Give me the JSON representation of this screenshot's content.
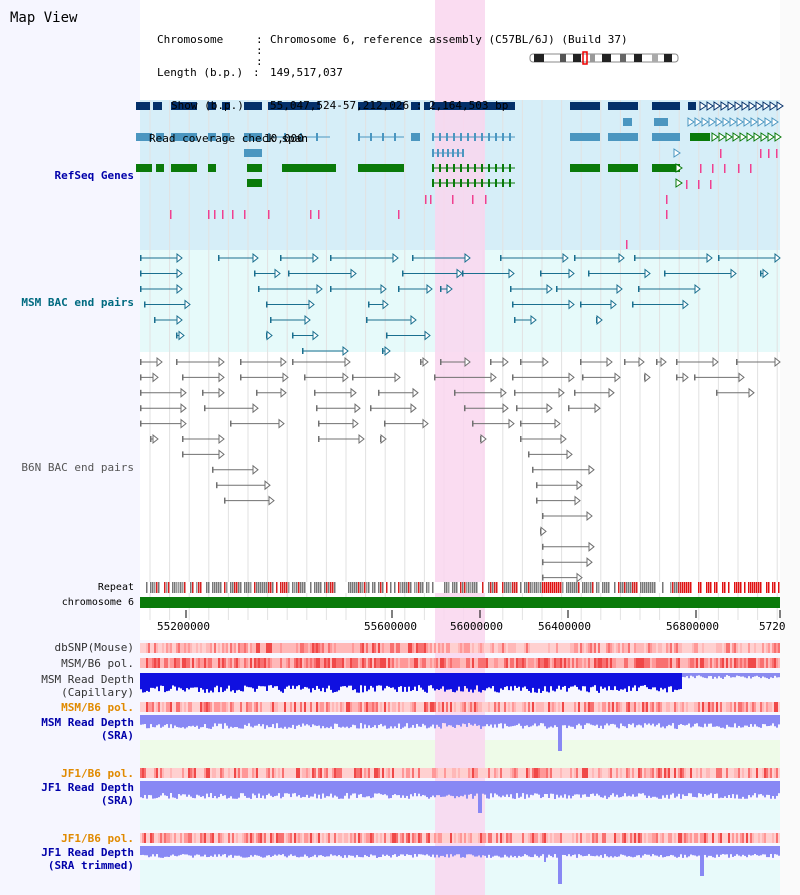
{
  "header": {
    "title": "Map View",
    "info_keys": [
      "Chromosome",
      "Length (b.p.)",
      "Show (b.p.)",
      "Read coverage check span"
    ],
    "info_values": [
      "Chromosome 6, reference assembly (C57BL/6J) (Build 37)",
      "149,517,037",
      "55,047,524-57,212,026 : 2,164,503 bp",
      "10,000"
    ]
  },
  "tracks": {
    "refseq": "RefSeq Genes",
    "msm_bac": "MSM BAC end pairs",
    "b6n_bac": "B6N BAC end pairs",
    "repeat": "Repeat",
    "chromosome": "chromosome 6",
    "dbsnp": "dbSNP(Mouse)",
    "msm_b6_pol_1": "MSM/B6 pol.",
    "msm_depth_cap": [
      "MSM Read Depth",
      "(Capillary)"
    ],
    "msm_b6_pol_2": "MSM/B6 pol.",
    "msm_depth_sra": [
      "MSM Read Depth",
      "(SRA)"
    ],
    "jf1_b6_pol_1": "JF1/B6 pol.",
    "jf1_depth_sra": [
      "JF1 Read Depth",
      "(SRA)"
    ],
    "jf1_b6_pol_2": "JF1/B6 pol.",
    "jf1_depth_trim": [
      "JF1 Read Depth",
      "(SRA trimmed)"
    ]
  },
  "axis": {
    "ticks": [
      "55200000",
      "55600000",
      "56000000",
      "56400000",
      "56800000",
      "5720"
    ]
  },
  "colors": {
    "highlight": "#f9d6ee",
    "refseq_bg": "#d6eef8",
    "msm_bac_bg": "#e6fafa",
    "navy": "#04306a",
    "steel": "#4b96c0",
    "green": "#0a7a0a",
    "teal": "#1a6f8f",
    "gray": "#707070",
    "depth_blue": "#1010e0",
    "depth_light": "#8888f4",
    "label_blue": "#0000aa",
    "label_teal": "#006a80",
    "label_orange": "#e08a00"
  }
}
